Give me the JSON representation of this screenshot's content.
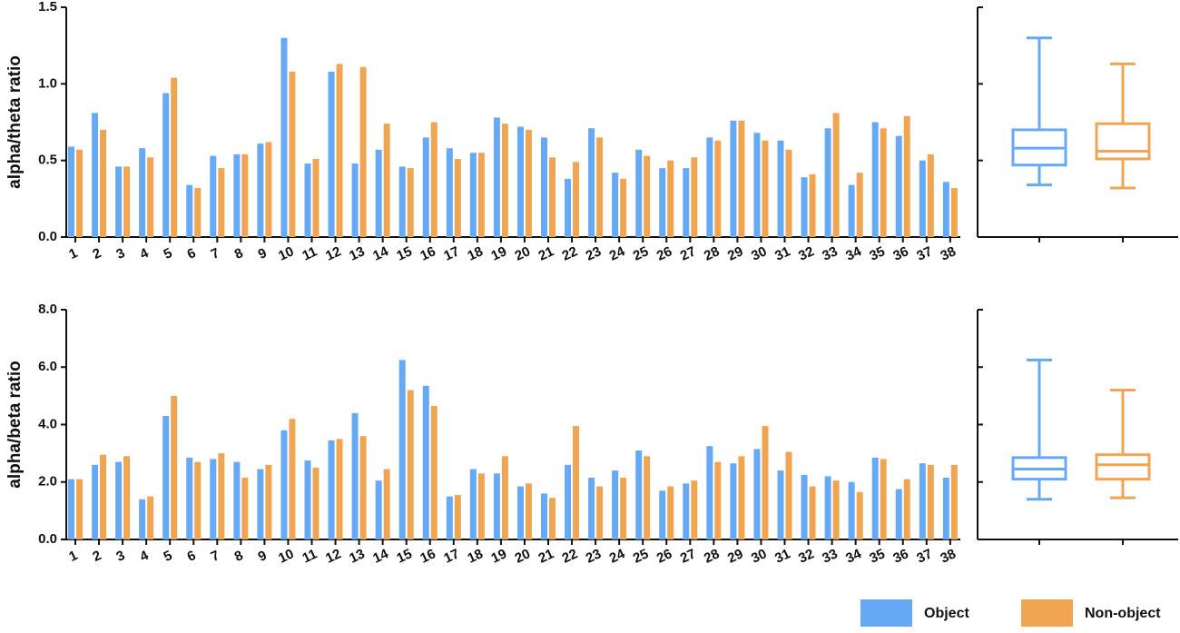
{
  "chart_data": [
    {
      "type": "bar",
      "ylabel": "alpha/theta ratio",
      "categories": [
        "1",
        "2",
        "3",
        "4",
        "5",
        "6",
        "7",
        "8",
        "9",
        "10",
        "11",
        "12",
        "13",
        "14",
        "15",
        "16",
        "17",
        "18",
        "19",
        "20",
        "21",
        "22",
        "23",
        "24",
        "25",
        "26",
        "27",
        "28",
        "29",
        "30",
        "31",
        "32",
        "33",
        "34",
        "35",
        "36",
        "37",
        "38"
      ],
      "series": [
        {
          "name": "Object",
          "color": "#66a9f5",
          "values": [
            0.59,
            0.81,
            0.46,
            0.58,
            0.94,
            0.34,
            0.53,
            0.54,
            0.61,
            1.3,
            0.48,
            1.08,
            0.48,
            0.57,
            0.46,
            0.65,
            0.58,
            0.55,
            0.78,
            0.72,
            0.65,
            0.38,
            0.71,
            0.42,
            0.57,
            0.45,
            0.45,
            0.65,
            0.76,
            0.68,
            0.63,
            0.39,
            0.71,
            0.34,
            0.75,
            0.66,
            0.5,
            0.36
          ]
        },
        {
          "name": "Non-object",
          "color": "#f0a552",
          "values": [
            0.57,
            0.7,
            0.46,
            0.52,
            1.04,
            0.32,
            0.45,
            0.54,
            0.62,
            1.08,
            0.51,
            1.13,
            1.11,
            0.74,
            0.45,
            0.75,
            0.51,
            0.55,
            0.74,
            0.7,
            0.52,
            0.49,
            0.65,
            0.38,
            0.53,
            0.5,
            0.52,
            0.63,
            0.76,
            0.63,
            0.57,
            0.41,
            0.81,
            0.42,
            0.71,
            0.79,
            0.54,
            0.32
          ]
        }
      ],
      "ylim": [
        0,
        1.5
      ],
      "yticks": [
        {
          "value": 0,
          "label": "0.0"
        },
        0.5,
        {
          "value": 1,
          "label": "1.0"
        },
        1.5
      ]
    },
    {
      "type": "box",
      "series": [
        {
          "color": "#66a9f5",
          "min": 0.34,
          "q1": 0.47,
          "median": 0.58,
          "q3": 0.7,
          "max": 1.3
        },
        {
          "color": "#f0a552",
          "min": 0.32,
          "q1": 0.51,
          "median": 0.56,
          "q3": 0.74,
          "max": 1.13
        }
      ],
      "ylim": [
        0,
        1.5
      ],
      "yticks": [
        0,
        0.5,
        1,
        1.5
      ]
    },
    {
      "type": "bar",
      "ylabel": "alpha/beta ratio",
      "categories": [
        "1",
        "2",
        "3",
        "4",
        "5",
        "6",
        "7",
        "8",
        "9",
        "10",
        "11",
        "12",
        "13",
        "14",
        "15",
        "16",
        "17",
        "18",
        "19",
        "20",
        "21",
        "22",
        "23",
        "24",
        "25",
        "26",
        "27",
        "28",
        "29",
        "30",
        "31",
        "32",
        "33",
        "34",
        "35",
        "36",
        "37",
        "38"
      ],
      "series": [
        {
          "color": "#66a9f5",
          "values": [
            2.1,
            2.6,
            2.7,
            1.4,
            4.3,
            2.85,
            2.8,
            2.7,
            2.45,
            3.8,
            2.75,
            3.45,
            4.4,
            2.05,
            6.25,
            5.35,
            1.5,
            2.45,
            2.3,
            1.85,
            1.6,
            2.6,
            2.15,
            2.4,
            3.1,
            1.7,
            1.95,
            3.25,
            2.65,
            3.15,
            2.4,
            2.25,
            2.2,
            2.0,
            2.85,
            1.75,
            2.65,
            2.15
          ]
        },
        {
          "color": "#f0a552",
          "values": [
            2.1,
            2.95,
            2.9,
            1.5,
            5.0,
            2.7,
            3.0,
            2.15,
            2.6,
            4.2,
            2.5,
            3.5,
            3.6,
            2.45,
            5.2,
            4.65,
            1.55,
            2.3,
            2.9,
            1.95,
            1.45,
            3.95,
            1.85,
            2.15,
            2.9,
            1.85,
            2.05,
            2.7,
            2.9,
            3.95,
            3.05,
            1.85,
            2.05,
            1.65,
            2.8,
            2.1,
            2.6,
            2.6
          ]
        }
      ],
      "ylim": [
        0,
        8
      ],
      "yticks": [
        {
          "value": 0,
          "label": "0.0"
        },
        {
          "value": 2,
          "label": "2.0"
        },
        {
          "value": 4,
          "label": "4.0"
        },
        {
          "value": 6,
          "label": "6.0"
        },
        {
          "value": 8,
          "label": "8.0"
        }
      ]
    },
    {
      "type": "box",
      "series": [
        {
          "color": "#66a9f5",
          "min": 1.4,
          "q1": 2.1,
          "median": 2.45,
          "q3": 2.85,
          "max": 6.25
        },
        {
          "color": "#f0a552",
          "min": 1.45,
          "q1": 2.1,
          "median": 2.6,
          "q3": 2.95,
          "max": 5.2
        }
      ],
      "ylim": [
        0,
        8
      ],
      "yticks": [
        0,
        2,
        4,
        6,
        8
      ]
    }
  ]
}
